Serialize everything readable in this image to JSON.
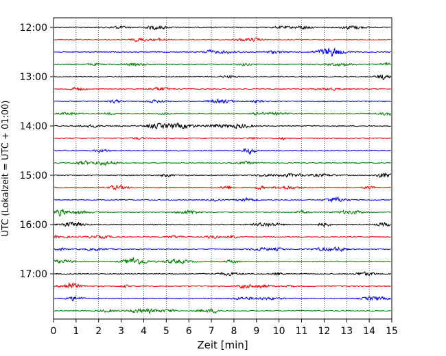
{
  "chart_data": {
    "type": "line",
    "title": "",
    "xlabel": "Zeit  [min]",
    "ylabel": "UTC (Lokalzeit = UTC + 01:00)",
    "xlim": [
      0,
      15
    ],
    "x_ticks": [
      0,
      1,
      2,
      3,
      4,
      5,
      6,
      7,
      8,
      9,
      10,
      11,
      12,
      13,
      14,
      15
    ],
    "x_tick_labels": [
      "0",
      "1",
      "2",
      "3",
      "4",
      "5",
      "6",
      "7",
      "8",
      "9",
      "10",
      "11",
      "12",
      "13",
      "14",
      "15"
    ],
    "y_tick_labels": [
      "12:00",
      "13:00",
      "14:00",
      "15:00",
      "16:00",
      "17:00"
    ],
    "grid": "vertical dotted",
    "trace_interval_minutes": 15,
    "trace_start": "12:00",
    "trace_count": 24,
    "trace_colors": [
      "#000000",
      "#ff0000",
      "#0000ff",
      "#007f00"
    ],
    "traces": [
      {
        "start": "12:00"
      },
      {
        "start": "12:15"
      },
      {
        "start": "12:30"
      },
      {
        "start": "12:45"
      },
      {
        "start": "13:00"
      },
      {
        "start": "13:15"
      },
      {
        "start": "13:30"
      },
      {
        "start": "13:45"
      },
      {
        "start": "14:00"
      },
      {
        "start": "14:15"
      },
      {
        "start": "14:30"
      },
      {
        "start": "14:45"
      },
      {
        "start": "15:00"
      },
      {
        "start": "15:15"
      },
      {
        "start": "15:30"
      },
      {
        "start": "15:45"
      },
      {
        "start": "16:00"
      },
      {
        "start": "16:15"
      },
      {
        "start": "16:30"
      },
      {
        "start": "16:45"
      },
      {
        "start": "17:00"
      },
      {
        "start": "17:15"
      },
      {
        "start": "17:30"
      },
      {
        "start": "17:45"
      }
    ]
  }
}
